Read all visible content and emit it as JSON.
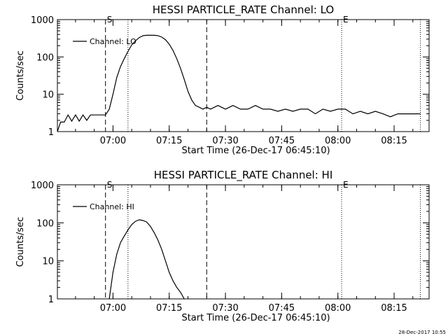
{
  "timestamp": "28-Dec-2017 10:55",
  "chart_data": [
    {
      "type": "line",
      "title": "HESSI PARTICLE_RATE Channel: LO",
      "xlabel": "Start Time (26-Dec-17 06:45:10)",
      "ylabel": "Counts/sec",
      "yscale": "log",
      "ylim": [
        1,
        1000
      ],
      "xlim": [
        "06:45:10",
        "08:24:20"
      ],
      "x_ticks": [
        "07:00",
        "07:15",
        "07:30",
        "07:45",
        "08:00",
        "08:15"
      ],
      "y_ticks": [
        "1",
        "10",
        "100",
        "1000"
      ],
      "legend": {
        "label": "Channel: LO",
        "position": "top-left"
      },
      "markers": [
        {
          "label": "S",
          "time": "06:58",
          "style": "dashed"
        },
        {
          "label": "",
          "time": "07:04",
          "style": "dotted"
        },
        {
          "label": "",
          "time": "07:25",
          "style": "dashed"
        },
        {
          "label": "E",
          "time": "08:01",
          "style": "dotted"
        },
        {
          "label": "",
          "time": "08:22",
          "style": "dotted"
        }
      ],
      "series": [
        {
          "name": "Channel: LO",
          "x": [
            "06:45:10",
            "06:46",
            "06:47",
            "06:48",
            "06:49",
            "06:50",
            "06:51",
            "06:52",
            "06:53",
            "06:54",
            "06:55",
            "06:56",
            "06:57",
            "06:58",
            "06:59",
            "07:00",
            "07:01",
            "07:02",
            "07:03",
            "07:04",
            "07:05",
            "07:06",
            "07:07",
            "07:08",
            "07:09",
            "07:10",
            "07:11",
            "07:12",
            "07:13",
            "07:14",
            "07:15",
            "07:16",
            "07:17",
            "07:18",
            "07:19",
            "07:20",
            "07:21",
            "07:22",
            "07:23",
            "07:24",
            "07:25",
            "07:26",
            "07:28",
            "07:30",
            "07:32",
            "07:34",
            "07:36",
            "07:38",
            "07:40",
            "07:42",
            "07:44",
            "07:46",
            "07:48",
            "07:50",
            "07:52",
            "07:54",
            "07:56",
            "07:58",
            "08:00",
            "08:02",
            "08:04",
            "08:06",
            "08:08",
            "08:10",
            "08:12",
            "08:14",
            "08:16",
            "08:18",
            "08:20",
            "08:22"
          ],
          "values": [
            1.0,
            1.8,
            1.8,
            2.8,
            1.9,
            2.8,
            1.9,
            2.8,
            2.0,
            2.8,
            2.8,
            2.8,
            2.8,
            2.8,
            4,
            10,
            28,
            55,
            90,
            140,
            210,
            270,
            330,
            370,
            380,
            380,
            380,
            370,
            340,
            290,
            220,
            150,
            90,
            50,
            25,
            12,
            7,
            5,
            4.5,
            4,
            4.5,
            4,
            5,
            4,
            5,
            4,
            4,
            5,
            4,
            4,
            3.5,
            4,
            3.5,
            4,
            4,
            3,
            4,
            3.5,
            4,
            4,
            3,
            3.5,
            3,
            3.5,
            3,
            2.5,
            3,
            3,
            3,
            3
          ]
        }
      ]
    },
    {
      "type": "line",
      "title": "HESSI PARTICLE_RATE Channel: HI",
      "xlabel": "Start Time (26-Dec-17 06:45:10)",
      "ylabel": "Counts/sec",
      "yscale": "log",
      "ylim": [
        1,
        1000
      ],
      "xlim": [
        "06:45:10",
        "08:24:20"
      ],
      "x_ticks": [
        "07:00",
        "07:15",
        "07:30",
        "07:45",
        "08:00",
        "08:15"
      ],
      "y_ticks": [
        "1",
        "10",
        "100",
        "1000"
      ],
      "legend": {
        "label": "Channel: HI",
        "position": "top-left"
      },
      "markers": [
        {
          "label": "S",
          "time": "06:58",
          "style": "dashed"
        },
        {
          "label": "",
          "time": "07:04",
          "style": "dotted"
        },
        {
          "label": "",
          "time": "07:25",
          "style": "dashed"
        },
        {
          "label": "E",
          "time": "08:01",
          "style": "dotted"
        },
        {
          "label": "",
          "time": "08:22",
          "style": "dotted"
        }
      ],
      "series": [
        {
          "name": "Channel: HI",
          "x": [
            "06:59",
            "07:00",
            "07:01",
            "07:02",
            "07:03",
            "07:04",
            "07:05",
            "07:06",
            "07:07",
            "07:08",
            "07:09",
            "07:10",
            "07:11",
            "07:12",
            "07:13",
            "07:14",
            "07:15",
            "07:16",
            "07:17",
            "07:18",
            "07:19"
          ],
          "values": [
            1.0,
            5,
            15,
            30,
            45,
            65,
            90,
            110,
            120,
            115,
            105,
            80,
            55,
            35,
            20,
            10,
            5,
            3,
            2,
            1.5,
            1.0
          ]
        }
      ]
    }
  ]
}
